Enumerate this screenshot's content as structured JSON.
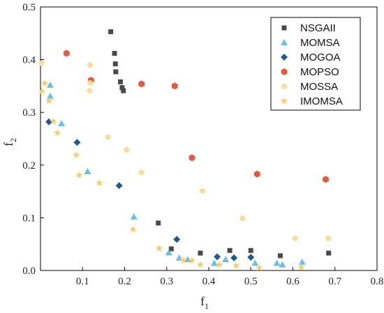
{
  "chart_data": {
    "type": "scatter",
    "title": "",
    "xlabel_main": "f",
    "xlabel_sub": "1",
    "ylabel_main": "f",
    "ylabel_sub": "2",
    "xlim": [
      0,
      0.8
    ],
    "ylim": [
      0,
      0.5
    ],
    "x_ticks": [
      {
        "value": 0.1,
        "label": "0.1"
      },
      {
        "value": 0.2,
        "label": "0.2"
      },
      {
        "value": 0.3,
        "label": "0.3"
      },
      {
        "value": 0.4,
        "label": "0.4"
      },
      {
        "value": 0.5,
        "label": "0.5"
      },
      {
        "value": 0.6,
        "label": "0.6"
      },
      {
        "value": 0.7,
        "label": "0.7"
      },
      {
        "value": 0.8,
        "label": "0.8"
      }
    ],
    "y_ticks": [
      {
        "value": 0.0,
        "label": "0.0"
      },
      {
        "value": 0.1,
        "label": "0.1"
      },
      {
        "value": 0.2,
        "label": "0.2"
      },
      {
        "value": 0.3,
        "label": "0.3"
      },
      {
        "value": 0.4,
        "label": "0.4"
      },
      {
        "value": 0.5,
        "label": "0.5"
      }
    ],
    "grid": false,
    "legend_position": "top-right",
    "series": [
      {
        "name": "NSGAII",
        "marker": "square",
        "color": "#4a4a4a",
        "points": [
          [
            0.167,
            0.453
          ],
          [
            0.176,
            0.412
          ],
          [
            0.178,
            0.392
          ],
          [
            0.179,
            0.377
          ],
          [
            0.19,
            0.358
          ],
          [
            0.194,
            0.347
          ],
          [
            0.197,
            0.341
          ],
          [
            0.28,
            0.09
          ],
          [
            0.311,
            0.041
          ],
          [
            0.38,
            0.033
          ],
          [
            0.45,
            0.038
          ],
          [
            0.5,
            0.038
          ],
          [
            0.57,
            0.028
          ],
          [
            0.685,
            0.033
          ]
        ]
      },
      {
        "name": "MOMSA",
        "marker": "triangle",
        "color": "#6cbfe0",
        "points": [
          [
            0.023,
            0.352
          ],
          [
            0.023,
            0.331
          ],
          [
            0.05,
            0.279
          ],
          [
            0.112,
            0.188
          ],
          [
            0.222,
            0.102
          ],
          [
            0.305,
            0.034
          ],
          [
            0.33,
            0.024
          ],
          [
            0.35,
            0.021
          ],
          [
            0.413,
            0.014
          ],
          [
            0.44,
            0.021
          ],
          [
            0.51,
            0.014
          ],
          [
            0.562,
            0.014
          ],
          [
            0.575,
            0.011
          ],
          [
            0.622,
            0.016
          ]
        ]
      },
      {
        "name": "MOGOA",
        "marker": "diamond",
        "color": "#1f5a96",
        "points": [
          [
            0.02,
            0.282
          ],
          [
            0.087,
            0.243
          ],
          [
            0.187,
            0.161
          ],
          [
            0.324,
            0.059
          ],
          [
            0.42,
            0.026
          ],
          [
            0.46,
            0.024
          ],
          [
            0.5,
            0.025
          ]
        ]
      },
      {
        "name": "MOPSO",
        "marker": "hexagon",
        "color": "#e05a44",
        "points": [
          [
            0.062,
            0.412
          ],
          [
            0.12,
            0.361
          ],
          [
            0.24,
            0.354
          ],
          [
            0.319,
            0.35
          ],
          [
            0.36,
            0.214
          ],
          [
            0.515,
            0.183
          ],
          [
            0.678,
            0.173
          ]
        ]
      },
      {
        "name": "MOSSA",
        "marker": "circle",
        "color": "#fbdc9a",
        "points": [
          [
            0.003,
            0.393
          ],
          [
            0.118,
            0.39
          ],
          [
            0.118,
            0.356
          ],
          [
            0.117,
            0.341
          ],
          [
            0.16,
            0.253
          ],
          [
            0.205,
            0.229
          ],
          [
            0.24,
            0.186
          ],
          [
            0.385,
            0.151
          ],
          [
            0.48,
            0.099
          ],
          [
            0.605,
            0.061
          ],
          [
            0.684,
            0.061
          ]
        ]
      },
      {
        "name": "IMOMSA",
        "marker": "star",
        "color": "#f5cd6a",
        "points": [
          [
            0.003,
            0.34
          ],
          [
            0.01,
            0.355
          ],
          [
            0.02,
            0.322
          ],
          [
            0.03,
            0.283
          ],
          [
            0.04,
            0.261
          ],
          [
            0.085,
            0.219
          ],
          [
            0.092,
            0.181
          ],
          [
            0.14,
            0.166
          ],
          [
            0.22,
            0.078
          ],
          [
            0.282,
            0.042
          ],
          [
            0.34,
            0.019
          ],
          [
            0.36,
            0.019
          ],
          [
            0.38,
            0.011
          ],
          [
            0.425,
            0.011
          ],
          [
            0.465,
            0.009
          ],
          [
            0.52,
            0.005
          ],
          [
            0.62,
            0.006
          ]
        ]
      }
    ]
  }
}
